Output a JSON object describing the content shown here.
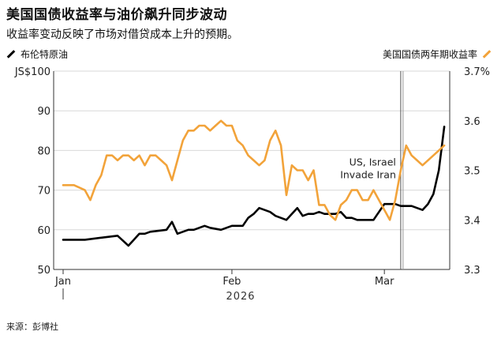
{
  "header": {
    "title": "美国国债收益率与油价飙升同步波动",
    "subtitle": "收益率变动反映了市场对借贷成本上升的预期。"
  },
  "legend": {
    "left_label": "布伦特原油",
    "right_label": "美国国债两年期收益率"
  },
  "source": "来源：彭博社",
  "colors": {
    "oil": "#000000",
    "yield": "#f2a33a",
    "grid": "#d9d9d9"
  },
  "chart_data": {
    "type": "line",
    "x_axis": {
      "ticks": [
        "Jan",
        "Feb",
        "Mar"
      ],
      "year_label": "2026",
      "range_days": [
        0,
        71
      ]
    },
    "y_left": {
      "ticks": [
        "JS$100",
        "90",
        "80",
        "70",
        "60",
        "50"
      ],
      "ylim": [
        50,
        100
      ]
    },
    "y_right": {
      "ticks": [
        "3.7%",
        "3.6",
        "3.5",
        "3.4",
        "3.3"
      ],
      "ylim": [
        3.3,
        3.7
      ]
    },
    "annotation": {
      "lines": [
        "US, Israel",
        "Invade Iran"
      ],
      "x": 62
    },
    "series": [
      {
        "name": "布伦特原油",
        "axis": "left",
        "x": [
          0,
          2,
          4,
          7,
          10,
          12,
          13,
          14,
          15,
          16,
          19,
          20,
          21,
          22,
          23,
          24,
          25,
          26,
          27,
          29,
          31,
          33,
          34,
          35,
          36,
          37,
          38,
          39,
          41,
          42,
          43,
          44,
          45,
          46,
          47,
          48,
          50,
          51,
          52,
          53,
          54,
          57,
          59,
          61,
          62,
          63,
          64,
          65,
          66,
          67,
          68,
          69,
          70
        ],
        "values": [
          57.5,
          57.5,
          57.5,
          58,
          58.5,
          56,
          57.5,
          59,
          59,
          59.5,
          60,
          62,
          59,
          59.5,
          60,
          60,
          60.5,
          61,
          60.5,
          60,
          61,
          61,
          63,
          64,
          65.5,
          65,
          64.5,
          63.5,
          62.5,
          64,
          65.5,
          63.5,
          64,
          64,
          64.5,
          64,
          64,
          64.5,
          63,
          63,
          62.5,
          62.5,
          66.5,
          66.5,
          66,
          66,
          66,
          65.5,
          65,
          66.5,
          69,
          75,
          86
        ]
      },
      {
        "name": "美国国债两年期收益率",
        "axis": "right",
        "x": [
          0,
          2,
          4,
          5,
          6,
          7,
          8,
          9,
          10,
          11,
          12,
          13,
          14,
          15,
          16,
          17,
          18,
          19,
          20,
          21,
          22,
          23,
          24,
          25,
          26,
          27,
          28,
          29,
          30,
          31,
          32,
          33,
          34,
          35,
          36,
          37,
          38,
          39,
          40,
          41,
          42,
          43,
          44,
          45,
          46,
          47,
          48,
          49,
          50,
          51,
          52,
          53,
          54,
          55,
          56,
          57,
          58,
          59,
          60,
          61,
          62,
          63,
          64,
          65,
          66,
          67,
          68,
          69,
          70
        ],
        "values": [
          3.47,
          3.47,
          3.46,
          3.44,
          3.47,
          3.49,
          3.53,
          3.53,
          3.52,
          3.53,
          3.53,
          3.52,
          3.53,
          3.51,
          3.53,
          3.53,
          3.52,
          3.51,
          3.48,
          3.52,
          3.56,
          3.58,
          3.58,
          3.59,
          3.59,
          3.58,
          3.59,
          3.6,
          3.59,
          3.59,
          3.56,
          3.55,
          3.53,
          3.52,
          3.51,
          3.52,
          3.56,
          3.58,
          3.55,
          3.45,
          3.51,
          3.5,
          3.5,
          3.48,
          3.5,
          3.43,
          3.43,
          3.41,
          3.4,
          3.43,
          3.44,
          3.46,
          3.46,
          3.44,
          3.44,
          3.46,
          3.44,
          3.42,
          3.4,
          3.44,
          3.5,
          3.55,
          3.53,
          3.52,
          3.51,
          3.52,
          3.53,
          3.54,
          3.55
        ]
      }
    ]
  }
}
